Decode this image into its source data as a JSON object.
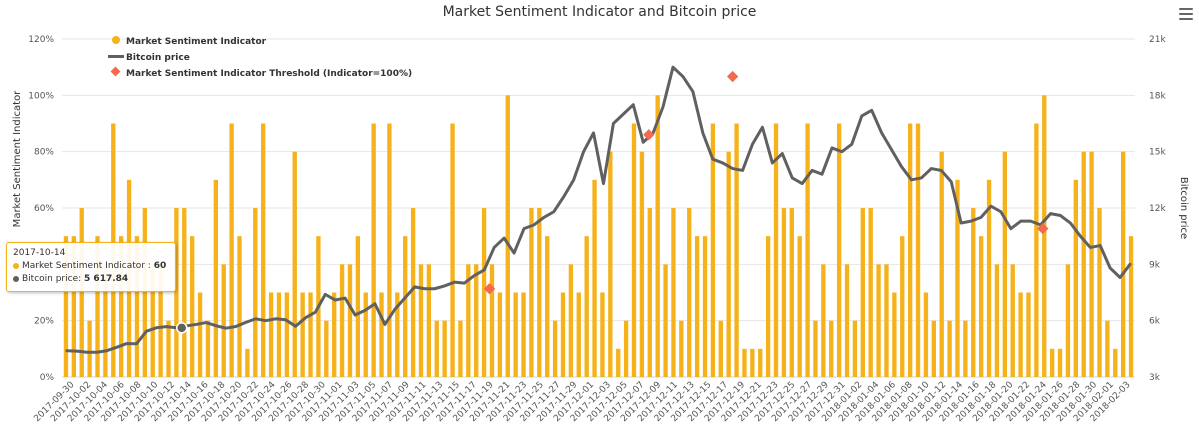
{
  "title": "Market Sentiment Indicator and Bitcoin price",
  "menu_icon": "hamburger-menu-icon",
  "colors": {
    "indicator": "#f5b21b",
    "price": "#606060",
    "threshold": "#f46a4e"
  },
  "tooltip": {
    "date": "2017-10-14",
    "indicator_label": "Market Sentiment Indicator :",
    "indicator_value": "60",
    "price_label": "Bitcoin price:",
    "price_value": "5 617.84"
  },
  "chart_data": {
    "type": "bar",
    "title": "Market Sentiment Indicator and Bitcoin price",
    "ylabel_left": "Market Sentiment Indicator",
    "ylabel_right": "Bitcoin price",
    "ylim_left": [
      0,
      120
    ],
    "ylim_right": [
      3000,
      21000
    ],
    "left_ticks": [
      "0%",
      "20%",
      "40%",
      "60%",
      "80%",
      "100%",
      "120%"
    ],
    "right_ticks": [
      "3k",
      "6k",
      "9k",
      "12k",
      "15k",
      "18k",
      "21k"
    ],
    "legend": [
      "Market Sentiment Indicator",
      "Bitcoin price",
      "Market Sentiment Indicator Threshold (Indicator=100%)"
    ],
    "legend_position": "top-left",
    "x_labels": [
      "2017-09-30",
      "2017-10-02",
      "2017-10-04",
      "2017-10-06",
      "2017-10-08",
      "2017-10-10",
      "2017-10-12",
      "2017-10-14",
      "2017-10-16",
      "2017-10-18",
      "2017-10-20",
      "2017-10-22",
      "2017-10-24",
      "2017-10-26",
      "2017-10-28",
      "2017-10-30",
      "2017-11-01",
      "2017-11-03",
      "2017-11-05",
      "2017-11-07",
      "2017-11-09",
      "2017-11-11",
      "2017-11-13",
      "2017-11-15",
      "2017-11-17",
      "2017-11-19",
      "2017-11-21",
      "2017-11-23",
      "2017-11-25",
      "2017-11-27",
      "2017-11-29",
      "2017-12-01",
      "2017-12-03",
      "2017-12-05",
      "2017-12-07",
      "2017-12-09",
      "2017-12-11",
      "2017-12-13",
      "2017-12-15",
      "2017-12-17",
      "2017-12-19",
      "2017-12-21",
      "2017-12-23",
      "2017-12-25",
      "2017-12-27",
      "2017-12-29",
      "2017-12-31",
      "2018-01-02",
      "2018-01-04",
      "2018-01-06",
      "2018-01-08",
      "2018-01-10",
      "2018-01-12",
      "2018-01-14",
      "2018-01-16",
      "2018-01-18",
      "2018-01-20",
      "2018-01-22",
      "2018-01-24",
      "2018-01-26",
      "2018-01-28",
      "2018-01-30",
      "2018-02-01",
      "2018-02-03"
    ],
    "indicator": [
      50,
      50,
      60,
      20,
      50,
      40,
      90,
      50,
      70,
      50,
      60,
      40,
      40,
      20,
      60,
      60,
      50,
      30,
      20,
      70,
      40,
      90,
      50,
      10,
      60,
      90,
      30,
      30,
      30,
      80,
      30,
      30,
      50,
      20,
      30,
      40,
      40,
      50,
      30,
      90,
      30,
      90,
      30,
      50,
      60,
      40,
      40,
      20,
      20,
      90,
      20,
      40,
      40,
      60,
      40,
      30,
      100,
      30,
      30,
      60,
      60,
      50,
      20,
      30,
      40,
      30,
      50,
      70,
      30,
      80,
      10,
      20,
      90,
      80,
      60,
      100,
      40,
      60,
      20,
      60,
      50,
      50,
      90,
      20,
      80,
      90,
      10,
      10,
      10,
      50,
      90,
      60,
      60,
      50,
      90,
      20,
      40,
      20,
      90,
      40,
      20,
      60,
      60,
      40,
      40,
      30,
      50,
      90,
      90,
      30,
      20,
      80,
      20,
      70,
      20,
      60,
      50,
      70,
      40,
      80,
      40,
      30,
      30,
      90,
      100,
      10,
      10,
      40,
      70,
      80,
      80,
      60,
      20,
      10,
      80,
      50
    ],
    "price": [
      4400,
      4380,
      4320,
      4320,
      4400,
      4580,
      4780,
      4770,
      5440,
      5620,
      5680,
      5620,
      5720,
      5800,
      5900,
      5730,
      5600,
      5690,
      5910,
      6100,
      6000,
      6100,
      6050,
      5700,
      6150,
      6450,
      7400,
      7100,
      7200,
      6300,
      6550,
      6900,
      5800,
      6600,
      7200,
      7800,
      7700,
      7700,
      7850,
      8050,
      8000,
      8400,
      8700,
      9900,
      10400,
      9600,
      10900,
      11100,
      11500,
      11800,
      12600,
      13500,
      15000,
      16000,
      13300,
      16500,
      17000,
      17500,
      15500,
      16000,
      17400,
      19500,
      19000,
      18200,
      16000,
      14600,
      14400,
      14100,
      14000,
      15400,
      16300,
      14400,
      14900,
      13600,
      13300,
      14000,
      13800,
      15200,
      15000,
      15400,
      16900,
      17200,
      16000,
      15100,
      14200,
      13500,
      13600,
      14100,
      14000,
      13400,
      11200,
      11300,
      11500,
      12100,
      11800,
      10900,
      11300,
      11300,
      11100,
      11700,
      11600,
      11200,
      10500,
      9900,
      10000,
      8800,
      8300,
      9000
    ],
    "threshold_points": [
      {
        "x": "2017-11-19",
        "price": 7700
      },
      {
        "x": "2017-12-08",
        "price": 15900
      },
      {
        "x": "2017-12-18",
        "price": 19000
      },
      {
        "x": "2018-01-24",
        "price": 10900
      }
    ]
  }
}
